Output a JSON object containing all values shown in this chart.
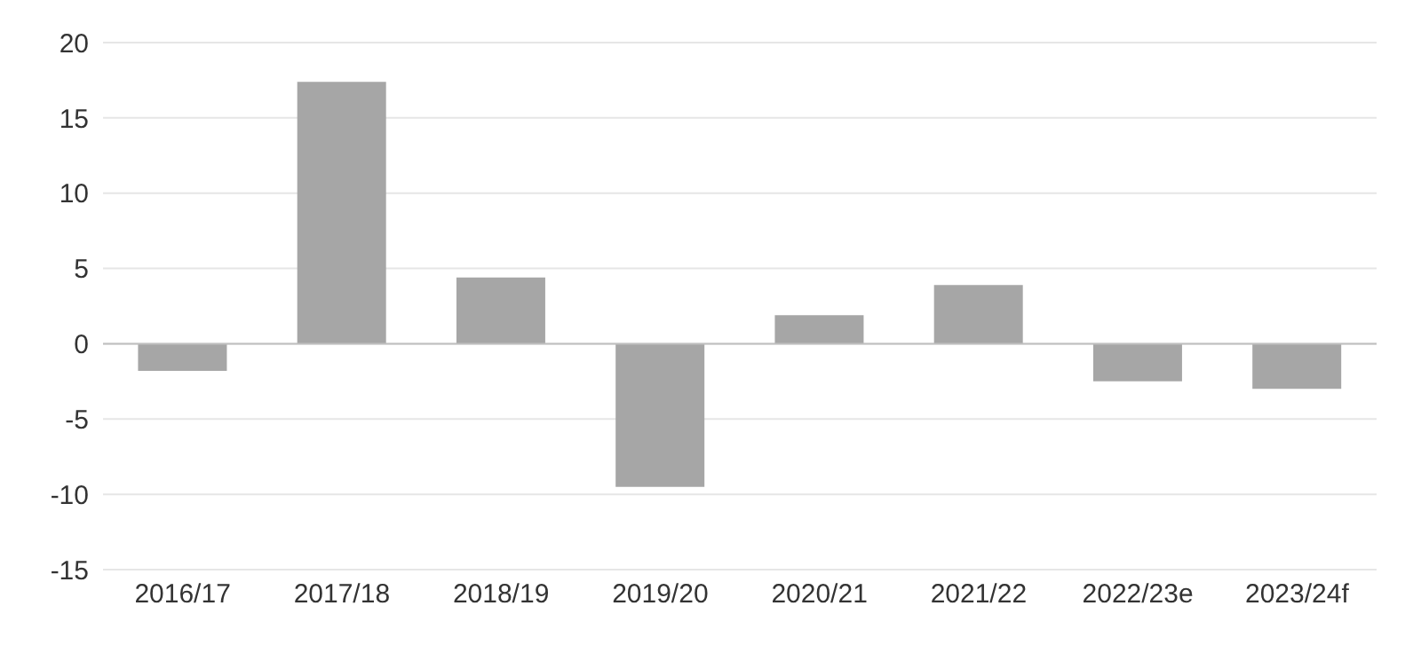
{
  "chart_data": {
    "type": "bar",
    "categories": [
      "2016/17",
      "2017/18",
      "2018/19",
      "2019/20",
      "2020/21",
      "2021/22",
      "2022/23e",
      "2023/24f"
    ],
    "values": [
      -1.8,
      17.4,
      4.4,
      -9.5,
      1.9,
      3.9,
      -2.5,
      -3.0
    ],
    "color": "#a6a6a6",
    "ylim": [
      -15,
      20
    ],
    "yticks": [
      -15,
      -10,
      -5,
      0,
      5,
      10,
      15,
      20
    ],
    "grid": "y"
  }
}
